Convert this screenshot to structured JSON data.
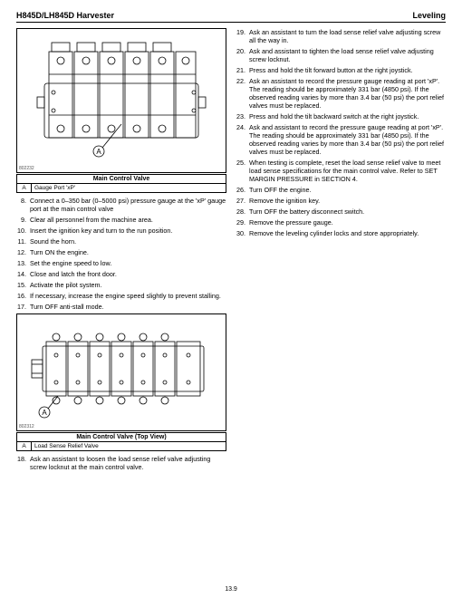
{
  "header": {
    "left": "H845D/LH845D Harvester",
    "right": "Leveling"
  },
  "page_number": "13.9",
  "figure1": {
    "ref": "802232",
    "caption_title": "Main Control Valve",
    "legend": [
      {
        "key": "A",
        "label": "Gauge Port 'xP'"
      }
    ],
    "callout": "A"
  },
  "figure2": {
    "ref": "802312",
    "caption_title": "Main Control Valve (Top View)",
    "legend": [
      {
        "key": "A",
        "label": "Load Sense Relief Valve"
      }
    ],
    "callout": "A"
  },
  "left_steps": [
    {
      "n": "8.",
      "t": "Connect a 0–350 bar (0–5000 psi) pressure gauge at the 'xP' gauge port at the main control valve"
    },
    {
      "n": "9.",
      "t": "Clear all personnel from the machine area."
    },
    {
      "n": "10.",
      "t": "Insert the ignition key and turn to the run position."
    },
    {
      "n": "11.",
      "t": "Sound the horn."
    },
    {
      "n": "12.",
      "t": "Turn ON the engine."
    },
    {
      "n": "13.",
      "t": "Set the engine speed to low."
    },
    {
      "n": "14.",
      "t": "Close and latch the front door."
    },
    {
      "n": "15.",
      "t": "Activate the pilot system."
    },
    {
      "n": "16.",
      "t": "If necessary, increase the engine speed slightly to prevent stalling."
    },
    {
      "n": "17.",
      "t": "Turn OFF anti-stall mode."
    }
  ],
  "left_steps_after": [
    {
      "n": "18.",
      "t": "Ask an assistant to loosen the load sense relief valve adjusting screw locknut at the main control valve."
    }
  ],
  "right_steps": [
    {
      "n": "19.",
      "t": "Ask an assistant to turn the load sense relief valve adjusting screw all the way in."
    },
    {
      "n": "20.",
      "t": "Ask and assistant to tighten the load sense relief valve adjusting screw locknut."
    },
    {
      "n": "21.",
      "t": "Press and hold the tilt forward button at the right joystick."
    },
    {
      "n": "22.",
      "t": "Ask an assistant to record the pressure gauge reading at port 'xP'. The reading should be approximately 331 bar (4850 psi). If the observed reading varies by more than 3.4 bar (50 psi) the port relief valves must be replaced."
    },
    {
      "n": "23.",
      "t": "Press and hold the tilt backward switch at the right joystick."
    },
    {
      "n": "24.",
      "t": "Ask and assistant to record the pressure gauge reading at port 'xP'. The reading should be approximately 331 bar (4850 psi). If the observed reading varies by more than 3.4 bar (50 psi) the port relief valves must be replaced."
    },
    {
      "n": "25.",
      "t": "When testing is complete, reset the load sense relief valve to meet load sense specifications for the main control valve. Refer to SET MARGIN PRESSURE in SECTION 4."
    },
    {
      "n": "26.",
      "t": "Turn OFF the engine."
    },
    {
      "n": "27.",
      "t": "Remove the ignition key."
    },
    {
      "n": "28.",
      "t": "Turn OFF the battery disconnect switch."
    },
    {
      "n": "29.",
      "t": "Remove the pressure gauge."
    },
    {
      "n": "30.",
      "t": "Remove the leveling cylinder locks and store appropriately."
    }
  ],
  "style": {
    "stroke": "#000000",
    "stroke_light": "#555555",
    "bg": "#ffffff"
  }
}
